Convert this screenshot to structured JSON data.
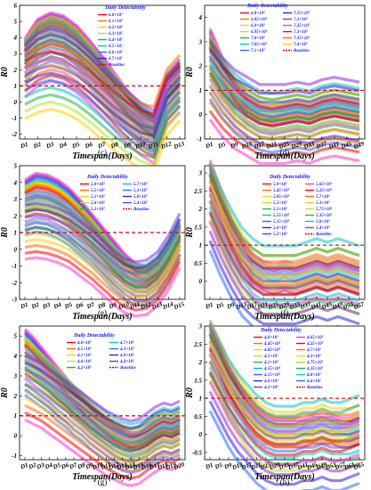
{
  "colors": {
    "baseline": "#e00000",
    "legend_text": "#1a1aff",
    "ribbon_palette": [
      "#ff0000",
      "#ff6a00",
      "#ffd000",
      "#b5e61d",
      "#22b14c",
      "#00c8c8",
      "#2a6bff",
      "#3b1fd6",
      "#8a2be2",
      "#ff33cc"
    ]
  },
  "chart_data": [
    {
      "panel": "(c)",
      "type": "line",
      "xlabel": "Timespan(Days)",
      "ylabel": "R0",
      "legend_title": "Daily Detectability",
      "legend": [
        "6.0×10⁵",
        "6.1×10⁵",
        "6.2×10⁵",
        "6.3×10⁵",
        "6.4×10⁵",
        "6.5×10⁵",
        "6.6×10⁵",
        "6.7×10⁵",
        "Baseline"
      ],
      "x_ticks": [
        "D1",
        "D2",
        "D3",
        "D4",
        "D5",
        "D6",
        "D7",
        "D8",
        "D9",
        "D10",
        "D11",
        "D12",
        "D13"
      ],
      "y_ticks": [
        -2,
        -1,
        0,
        1,
        2,
        3,
        4,
        5,
        6
      ],
      "ylim": [
        -2.3,
        6
      ],
      "baseline_y": 1,
      "series": [
        {
          "values": [
            3.6,
            4.8,
            5.2,
            5.0,
            4.4,
            3.5,
            2.5,
            1.4,
            0.3,
            -0.6,
            -1.2,
            1.2,
            2.0
          ]
        },
        {
          "values": [
            3.1,
            4.2,
            4.6,
            4.4,
            3.8,
            2.9,
            1.9,
            0.9,
            -0.1,
            -1.0,
            -1.6,
            0.8,
            1.7
          ]
        },
        {
          "values": [
            2.6,
            3.5,
            3.9,
            3.7,
            3.1,
            2.3,
            1.4,
            0.4,
            -0.5,
            -1.3,
            -1.9,
            0.5,
            1.4
          ]
        },
        {
          "values": [
            2.1,
            2.8,
            3.1,
            2.9,
            2.4,
            1.7,
            0.9,
            0.0,
            -0.8,
            -1.5,
            -2.0,
            0.3,
            1.2
          ]
        },
        {
          "values": [
            1.2,
            1.6,
            1.8,
            1.6,
            1.2,
            0.6,
            -0.1,
            -0.8,
            -1.4,
            -1.9,
            -2.1,
            0.2,
            1.1
          ]
        }
      ]
    },
    {
      "panel": "(d)",
      "type": "line",
      "xlabel": "Timespan(Days)",
      "ylabel": "R0",
      "legend_title": "Daily Detectability",
      "legend": [
        "6.8×10⁵",
        "6.85×10⁵",
        "6.9×10⁵",
        "6.95×10⁵",
        "7.0×10⁵",
        "7.05×10⁵",
        "7.1×10⁵",
        "7.15×10⁵",
        "7.2×10⁵",
        "7.25×10⁵",
        "7.3×10⁵",
        "7.35×10⁵",
        "7.4×10⁵",
        "Baseline"
      ],
      "x_ticks": [
        "D1",
        "D5",
        "D9",
        "D13",
        "D17",
        "D21",
        "D25",
        "D29",
        "D33",
        "D37",
        "D41",
        "D45",
        "D49"
      ],
      "y_ticks": [
        -1,
        0,
        1,
        2,
        3,
        4
      ],
      "ylim": [
        -1,
        4.5
      ],
      "baseline_y": 1,
      "series": [
        {
          "values": [
            3.2,
            2.0,
            1.0,
            0.4,
            0.1,
            0.0,
            0.1,
            0.2,
            0.1,
            0.3,
            0.4,
            0.3,
            0.2
          ]
        },
        {
          "values": [
            2.6,
            1.6,
            0.8,
            0.3,
            0.0,
            -0.1,
            0.0,
            0.1,
            0.0,
            0.2,
            0.3,
            0.2,
            0.1
          ]
        },
        {
          "values": [
            2.0,
            1.2,
            0.6,
            0.2,
            -0.1,
            -0.2,
            -0.1,
            0.0,
            -0.1,
            0.1,
            0.2,
            0.1,
            0.0
          ]
        },
        {
          "values": [
            1.6,
            0.9,
            0.4,
            0.1,
            -0.2,
            -0.2,
            -0.2,
            -0.1,
            -0.2,
            0.0,
            0.1,
            0.0,
            -0.1
          ]
        }
      ]
    },
    {
      "panel": "(e)",
      "type": "line",
      "xlabel": "Timespan(Days)",
      "ylabel": "R0",
      "legend_title": "Daily Detectability",
      "legend": [
        "5.0×10⁵",
        "5.5×10⁵",
        "5.1×10⁵",
        "5.6×10⁵",
        "5.2×10⁵",
        "5.7×10⁵",
        "5.3×10⁵",
        "5.8×10⁵",
        "5.4×10⁵",
        "Baseline"
      ],
      "x_ticks": [
        "D1",
        "D2",
        "D3",
        "D4",
        "D5",
        "D6",
        "D7",
        "D8",
        "D9",
        "D10",
        "D11",
        "D12",
        "D13",
        "D14",
        "D15"
      ],
      "y_ticks": [
        -3,
        -2,
        -1,
        0,
        1,
        2,
        3,
        4,
        5
      ],
      "ylim": [
        -3,
        5
      ],
      "baseline_y": 1,
      "series": [
        {
          "values": [
            3.8,
            4.2,
            4.1,
            3.8,
            3.3,
            2.6,
            1.8,
            1.0,
            0.2,
            -0.6,
            -1.2,
            -1.4,
            -1.0,
            0.0,
            1.2
          ]
        },
        {
          "values": [
            3.0,
            3.3,
            3.2,
            2.9,
            2.4,
            1.8,
            1.1,
            0.3,
            -0.5,
            -1.2,
            -1.7,
            -1.8,
            -1.3,
            -0.3,
            1.0
          ]
        },
        {
          "values": [
            2.2,
            2.4,
            2.3,
            2.0,
            1.6,
            1.0,
            0.4,
            -0.3,
            -1.0,
            -1.6,
            -2.0,
            -2.0,
            -1.5,
            -0.5,
            0.8
          ]
        },
        {
          "values": [
            1.2,
            1.3,
            1.2,
            1.0,
            0.7,
            0.2,
            -0.3,
            -0.9,
            -1.5,
            -2.0,
            -2.2,
            -2.1,
            -1.6,
            -0.6,
            0.7
          ]
        }
      ]
    },
    {
      "panel": "(f)",
      "type": "line",
      "xlabel": "Timespan(Days)",
      "ylabel": "R0",
      "legend_title": "Daily Detectability",
      "legend": [
        "5.0×10⁵",
        "5.45×10⁵",
        "5.05×10⁵",
        "5.5×10⁵",
        "5.1×10⁵",
        "5.55×10⁵",
        "5.15×10⁵",
        "5.6×10⁵",
        "5.2×10⁵",
        "5.65×10⁵",
        "5.25×10⁵",
        "5.7×10⁵",
        "5.3×10⁵",
        "5.75×10⁵",
        "5.35×10⁵",
        "5.8×10⁵",
        "5.4×10⁵",
        "Baseline"
      ],
      "x_ticks": [
        "D1",
        "D5",
        "D9",
        "D13",
        "D17",
        "D21",
        "D25",
        "D29",
        "D33",
        "D37",
        "D41",
        "D45",
        "D49",
        "D53",
        "D57"
      ],
      "y_ticks": [
        0,
        0.5,
        1,
        1.5,
        2,
        2.5,
        3
      ],
      "ylim": [
        -0.5,
        3.2
      ],
      "baseline_y": 1,
      "series": [
        {
          "values": [
            3.0,
            2.2,
            1.4,
            0.8,
            0.4,
            0.2,
            0.1,
            0.2,
            0.1,
            0.2,
            0.3,
            0.2,
            0.3,
            0.2,
            0.1
          ]
        },
        {
          "values": [
            2.6,
            1.8,
            1.1,
            0.6,
            0.2,
            0.0,
            0.0,
            0.0,
            0.0,
            0.1,
            0.2,
            0.1,
            0.2,
            0.1,
            0.0
          ]
        },
        {
          "values": [
            2.2,
            1.5,
            0.9,
            0.4,
            0.1,
            -0.1,
            -0.1,
            -0.1,
            -0.1,
            0.0,
            0.1,
            0.0,
            0.1,
            0.0,
            -0.1
          ]
        }
      ]
    },
    {
      "panel": "(g)",
      "type": "line",
      "xlabel": "Timespan(Days)",
      "ylabel": "R0",
      "legend_title": "Daily Detectability",
      "legend": [
        "4.0×10⁵",
        "4.5×10⁵",
        "4.1×10⁵",
        "4.6×10⁵",
        "4.2×10⁵",
        "4.7×10⁵",
        "4.3×10⁵",
        "4.8×10⁵",
        "4.4×10⁵",
        "Baseline"
      ],
      "x_ticks": [
        "D1",
        "D2",
        "D3",
        "D4",
        "D5",
        "D6",
        "D7",
        "D8",
        "D9",
        "D10",
        "D11",
        "D12",
        "D13",
        "D14",
        "D15",
        "D16",
        "D17",
        "D18",
        "D19",
        "D20"
      ],
      "y_ticks": [
        -1,
        0,
        1,
        2,
        3,
        4,
        5
      ],
      "ylim": [
        -1.2,
        5.5
      ],
      "baseline_y": 1,
      "series": [
        {
          "values": [
            5.0,
            4.6,
            4.1,
            3.6,
            3.1,
            2.6,
            2.1,
            1.7,
            1.3,
            0.9,
            0.5,
            0.2,
            0.0,
            -0.2,
            -0.2,
            0.0,
            0.3,
            0.5,
            0.4,
            0.6
          ]
        },
        {
          "values": [
            4.2,
            3.8,
            3.4,
            3.0,
            2.6,
            2.2,
            1.8,
            1.4,
            1.0,
            0.6,
            0.3,
            0.0,
            -0.2,
            -0.4,
            -0.3,
            -0.1,
            0.2,
            0.4,
            0.3,
            0.5
          ]
        },
        {
          "values": [
            3.4,
            3.1,
            2.8,
            2.5,
            2.1,
            1.8,
            1.4,
            1.1,
            0.7,
            0.4,
            0.1,
            -0.2,
            -0.4,
            -0.5,
            -0.4,
            -0.2,
            0.1,
            0.3,
            0.2,
            0.4
          ]
        },
        {
          "values": [
            2.6,
            2.4,
            2.2,
            1.9,
            1.6,
            1.3,
            1.0,
            0.7,
            0.4,
            0.1,
            -0.2,
            -0.4,
            -0.6,
            -0.7,
            -0.6,
            -0.3,
            0.0,
            0.2,
            0.1,
            0.3
          ]
        }
      ]
    },
    {
      "panel": "(h)",
      "type": "line",
      "xlabel": "Timespan(Days)",
      "ylabel": "R0",
      "legend_title": "Daily Detectability",
      "legend": [
        "4.0×10⁵",
        "4.45×10⁵",
        "4.05×10⁵",
        "4.5×10⁵",
        "4.1×10⁵",
        "4.55×10⁵",
        "4.15×10⁵",
        "4.6×10⁵",
        "4.2×10⁵",
        "4.65×10⁵",
        "4.25×10⁵",
        "4.7×10⁵",
        "4.3×10⁵",
        "4.75×10⁵",
        "4.35×10⁵",
        "4.8×10⁵",
        "4.4×10⁵",
        "Baseline"
      ],
      "x_ticks": [
        "D1",
        "D5",
        "D9",
        "D13",
        "D17",
        "D21",
        "D25",
        "D29",
        "D33",
        "D37",
        "D41",
        "D45",
        "D49",
        "D53",
        "D57",
        "D61",
        "D65"
      ],
      "y_ticks": [
        -0.5,
        0,
        0.5,
        1,
        1.5,
        2,
        2.5,
        3
      ],
      "ylim": [
        -0.7,
        3
      ],
      "baseline_y": 1,
      "series": [
        {
          "values": [
            2.8,
            2.2,
            1.6,
            1.1,
            0.7,
            0.4,
            0.2,
            0.1,
            0.1,
            0.1,
            0.1,
            0.2,
            0.2,
            0.2,
            0.1,
            0.1,
            0.2
          ]
        },
        {
          "values": [
            2.4,
            1.9,
            1.3,
            0.9,
            0.5,
            0.2,
            0.0,
            -0.1,
            -0.1,
            -0.1,
            0.0,
            0.0,
            0.1,
            0.0,
            0.0,
            0.0,
            0.1
          ]
        },
        {
          "values": [
            2.0,
            1.5,
            1.0,
            0.6,
            0.3,
            0.0,
            -0.2,
            -0.3,
            -0.3,
            -0.3,
            -0.2,
            -0.2,
            -0.1,
            -0.2,
            -0.2,
            -0.1,
            0.0
          ]
        }
      ]
    }
  ]
}
